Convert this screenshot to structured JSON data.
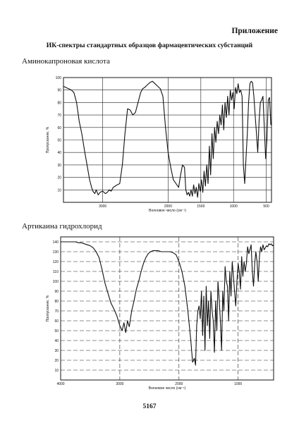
{
  "page": {
    "appendix_label": "Приложение",
    "title": "ИК-спектры стандартных образцов фармацевтических субстанций",
    "page_number": "5167"
  },
  "chart_data": [
    {
      "type": "line",
      "title": "Аминокапроновая кислота",
      "xlabel": "Волновое число (см⁻¹)",
      "ylabel": "Пропускание, %",
      "xlim": [
        3600,
        420
      ],
      "ylim": [
        0,
        100
      ],
      "x_ticks": [
        "3000",
        "2000",
        "1500",
        "1000",
        "500"
      ],
      "y_ticks": [
        "10",
        "20",
        "30",
        "40",
        "50",
        "60",
        "70",
        "80",
        "90",
        "100"
      ],
      "grid": true,
      "x": [
        3600,
        3560,
        3520,
        3480,
        3440,
        3400,
        3360,
        3320,
        3280,
        3240,
        3200,
        3170,
        3150,
        3120,
        3100,
        3070,
        3040,
        3000,
        2960,
        2930,
        2900,
        2870,
        2840,
        2810,
        2780,
        2740,
        2700,
        2660,
        2620,
        2580,
        2540,
        2500,
        2470,
        2450,
        2420,
        2390,
        2360,
        2320,
        2280,
        2240,
        2200,
        2160,
        2120,
        2080,
        2040,
        2000,
        1960,
        1920,
        1880,
        1840,
        1810,
        1780,
        1750,
        1730,
        1710,
        1690,
        1670,
        1650,
        1630,
        1610,
        1590,
        1570,
        1550,
        1530,
        1510,
        1490,
        1470,
        1450,
        1430,
        1410,
        1390,
        1370,
        1350,
        1330,
        1310,
        1290,
        1270,
        1250,
        1230,
        1210,
        1190,
        1170,
        1150,
        1130,
        1110,
        1090,
        1070,
        1050,
        1030,
        1010,
        990,
        970,
        950,
        930,
        910,
        890,
        870,
        850,
        830,
        810,
        790,
        770,
        750,
        730,
        710,
        690,
        670,
        650,
        630,
        610,
        590,
        570,
        550,
        530,
        510,
        490,
        470,
        450,
        430
      ],
      "y": [
        93,
        92,
        91,
        90,
        88,
        80,
        65,
        55,
        42,
        30,
        18,
        12,
        9,
        7,
        10,
        6,
        8,
        9,
        7,
        8,
        10,
        9,
        12,
        13,
        14,
        15,
        30,
        55,
        75,
        74,
        70,
        72,
        78,
        82,
        88,
        91,
        92,
        94,
        96,
        97,
        95,
        93,
        91,
        85,
        60,
        40,
        28,
        18,
        15,
        12,
        22,
        30,
        28,
        10,
        6,
        8,
        5,
        10,
        5,
        14,
        7,
        12,
        4,
        15,
        9,
        18,
        8,
        25,
        13,
        30,
        15,
        45,
        22,
        55,
        35,
        60,
        48,
        65,
        55,
        70,
        62,
        78,
        58,
        80,
        68,
        85,
        70,
        90,
        82,
        88,
        75,
        92,
        87,
        95,
        88,
        90,
        85,
        30,
        15,
        35,
        55,
        80,
        95,
        97,
        96,
        85,
        70,
        55,
        40,
        65,
        80,
        82,
        85,
        60,
        35,
        50,
        82,
        84,
        62
      ]
    },
    {
      "type": "line",
      "title": "Артикаина гидрохлорид",
      "xlabel": "Волновое число (см⁻¹)",
      "ylabel": "Пропускание, %",
      "xlim": [
        4000,
        400
      ],
      "ylim": [
        0,
        145
      ],
      "x_ticks": [
        "4000",
        "3000",
        "2000",
        "1000"
      ],
      "y_ticks": [
        "10",
        "20",
        "30",
        "40",
        "50",
        "60",
        "70",
        "80",
        "90",
        "100",
        "110",
        "120",
        "130",
        "140"
      ],
      "grid": true,
      "x": [
        4000,
        3950,
        3900,
        3850,
        3800,
        3750,
        3700,
        3650,
        3600,
        3550,
        3500,
        3450,
        3400,
        3350,
        3300,
        3250,
        3200,
        3150,
        3100,
        3050,
        3000,
        2960,
        2930,
        2900,
        2870,
        2840,
        2800,
        2760,
        2720,
        2680,
        2640,
        2600,
        2560,
        2520,
        2480,
        2440,
        2400,
        2350,
        2300,
        2250,
        2200,
        2150,
        2100,
        2050,
        2000,
        1950,
        1900,
        1850,
        1800,
        1770,
        1740,
        1720,
        1700,
        1680,
        1660,
        1640,
        1620,
        1600,
        1580,
        1560,
        1540,
        1520,
        1500,
        1480,
        1460,
        1440,
        1420,
        1400,
        1380,
        1360,
        1340,
        1320,
        1300,
        1280,
        1260,
        1240,
        1220,
        1200,
        1180,
        1160,
        1140,
        1120,
        1100,
        1080,
        1060,
        1040,
        1020,
        1000,
        980,
        960,
        940,
        920,
        900,
        880,
        860,
        840,
        820,
        800,
        780,
        760,
        740,
        720,
        700,
        680,
        660,
        640,
        620,
        600,
        580,
        560,
        540,
        520,
        500,
        480,
        460,
        440,
        420,
        400
      ],
      "y": [
        140,
        140,
        140,
        140,
        140,
        140,
        139,
        139,
        138,
        137,
        136,
        134,
        130,
        124,
        112,
        98,
        88,
        78,
        72,
        65,
        55,
        50,
        58,
        48,
        60,
        54,
        70,
        80,
        92,
        100,
        110,
        118,
        124,
        128,
        130,
        131,
        131,
        131,
        130,
        130,
        130,
        130,
        129,
        127,
        120,
        110,
        95,
        70,
        40,
        18,
        22,
        15,
        55,
        70,
        75,
        62,
        90,
        45,
        85,
        30,
        95,
        55,
        80,
        42,
        90,
        70,
        60,
        28,
        80,
        50,
        100,
        82,
        60,
        30,
        90,
        70,
        115,
        100,
        95,
        60,
        110,
        85,
        120,
        105,
        90,
        75,
        100,
        118,
        110,
        92,
        125,
        105,
        120,
        110,
        118,
        135,
        128,
        132,
        137,
        110,
        95,
        118,
        130,
        120,
        100,
        125,
        135,
        130,
        137,
        132,
        134,
        136,
        135,
        138,
        137,
        138,
        136,
        137
      ]
    }
  ]
}
